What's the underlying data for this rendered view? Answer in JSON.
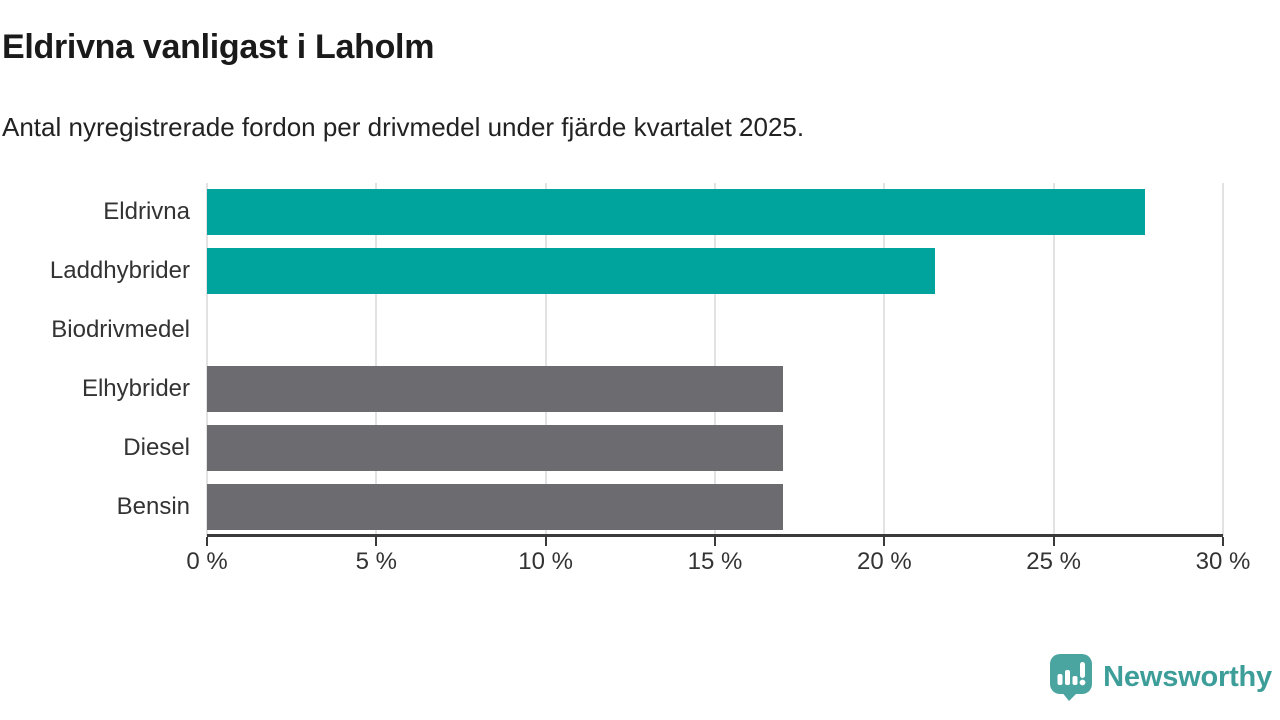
{
  "header": {
    "title": "Eldrivna vanligast i Laholm",
    "subtitle": "Antal nyregistrerade fordon per drivmedel under fjärde kvartalet 2025."
  },
  "chart_data": {
    "type": "bar",
    "orientation": "horizontal",
    "categories": [
      "Eldrivna",
      "Laddhybrider",
      "Biodrivmedel",
      "Elhybrider",
      "Diesel",
      "Bensin"
    ],
    "values": [
      27.7,
      21.5,
      0,
      17,
      17,
      17
    ],
    "unit": "%",
    "xlim": [
      0,
      30
    ],
    "x_tick_values": [
      0,
      5,
      10,
      15,
      20,
      25,
      30
    ],
    "x_tick_labels": [
      "0 %",
      "5 %",
      "10 %",
      "15 %",
      "20 %",
      "25 %",
      "30 %"
    ],
    "grid": true,
    "legend": "none",
    "bar_colors": [
      "#00a49d",
      "#00a49d",
      "#6b6b70",
      "#6b6b70",
      "#6b6b70",
      "#6b6b70"
    ],
    "colors": {
      "highlight": "#00a49d",
      "default": "#6b6b70",
      "gridline": "#e2e2e2",
      "axis": "#3a3a3a",
      "label": "#333333"
    }
  },
  "branding": {
    "logo_text": "Newsworthy",
    "logo_text_color": "#3d9e99",
    "logo_icon_color": "#4aa5a0",
    "logo_icon": "newsworthy-speech-bubble-chart-icon"
  }
}
